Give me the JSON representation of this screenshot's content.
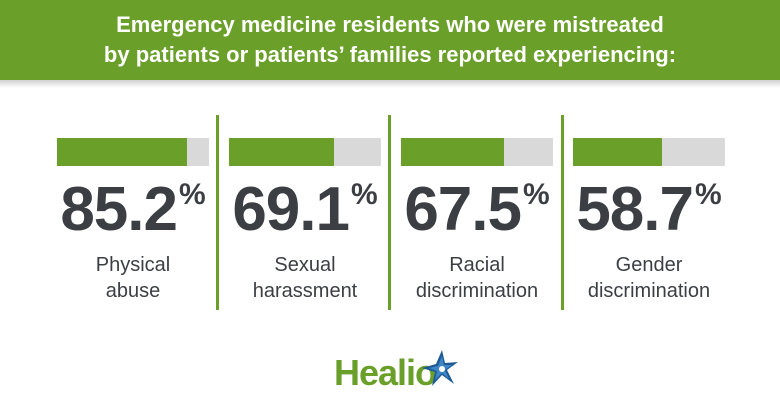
{
  "header": {
    "line1": "Emergency medicine residents who were mistreated",
    "line2": "by patients or patients’ families reported experiencing:"
  },
  "stats": [
    {
      "value": "85.2",
      "unit": "%",
      "fill_percent": 85.2,
      "label_line1": "Physical",
      "label_line2": "abuse"
    },
    {
      "value": "69.1",
      "unit": "%",
      "fill_percent": 69.1,
      "label_line1": "Sexual",
      "label_line2": "harassment"
    },
    {
      "value": "67.5",
      "unit": "%",
      "fill_percent": 67.5,
      "label_line1": "Racial",
      "label_line2": "discrimination"
    },
    {
      "value": "58.7",
      "unit": "%",
      "fill_percent": 58.7,
      "label_line1": "Gender",
      "label_line2": "discrimination"
    }
  ],
  "logo": {
    "text": "Healio",
    "icon": "star-icon"
  },
  "colors": {
    "accent": "#6a9f2a",
    "bar_bg": "#d9d9d9",
    "text": "#3b3f44",
    "logo_blue": "#1f5a96"
  }
}
